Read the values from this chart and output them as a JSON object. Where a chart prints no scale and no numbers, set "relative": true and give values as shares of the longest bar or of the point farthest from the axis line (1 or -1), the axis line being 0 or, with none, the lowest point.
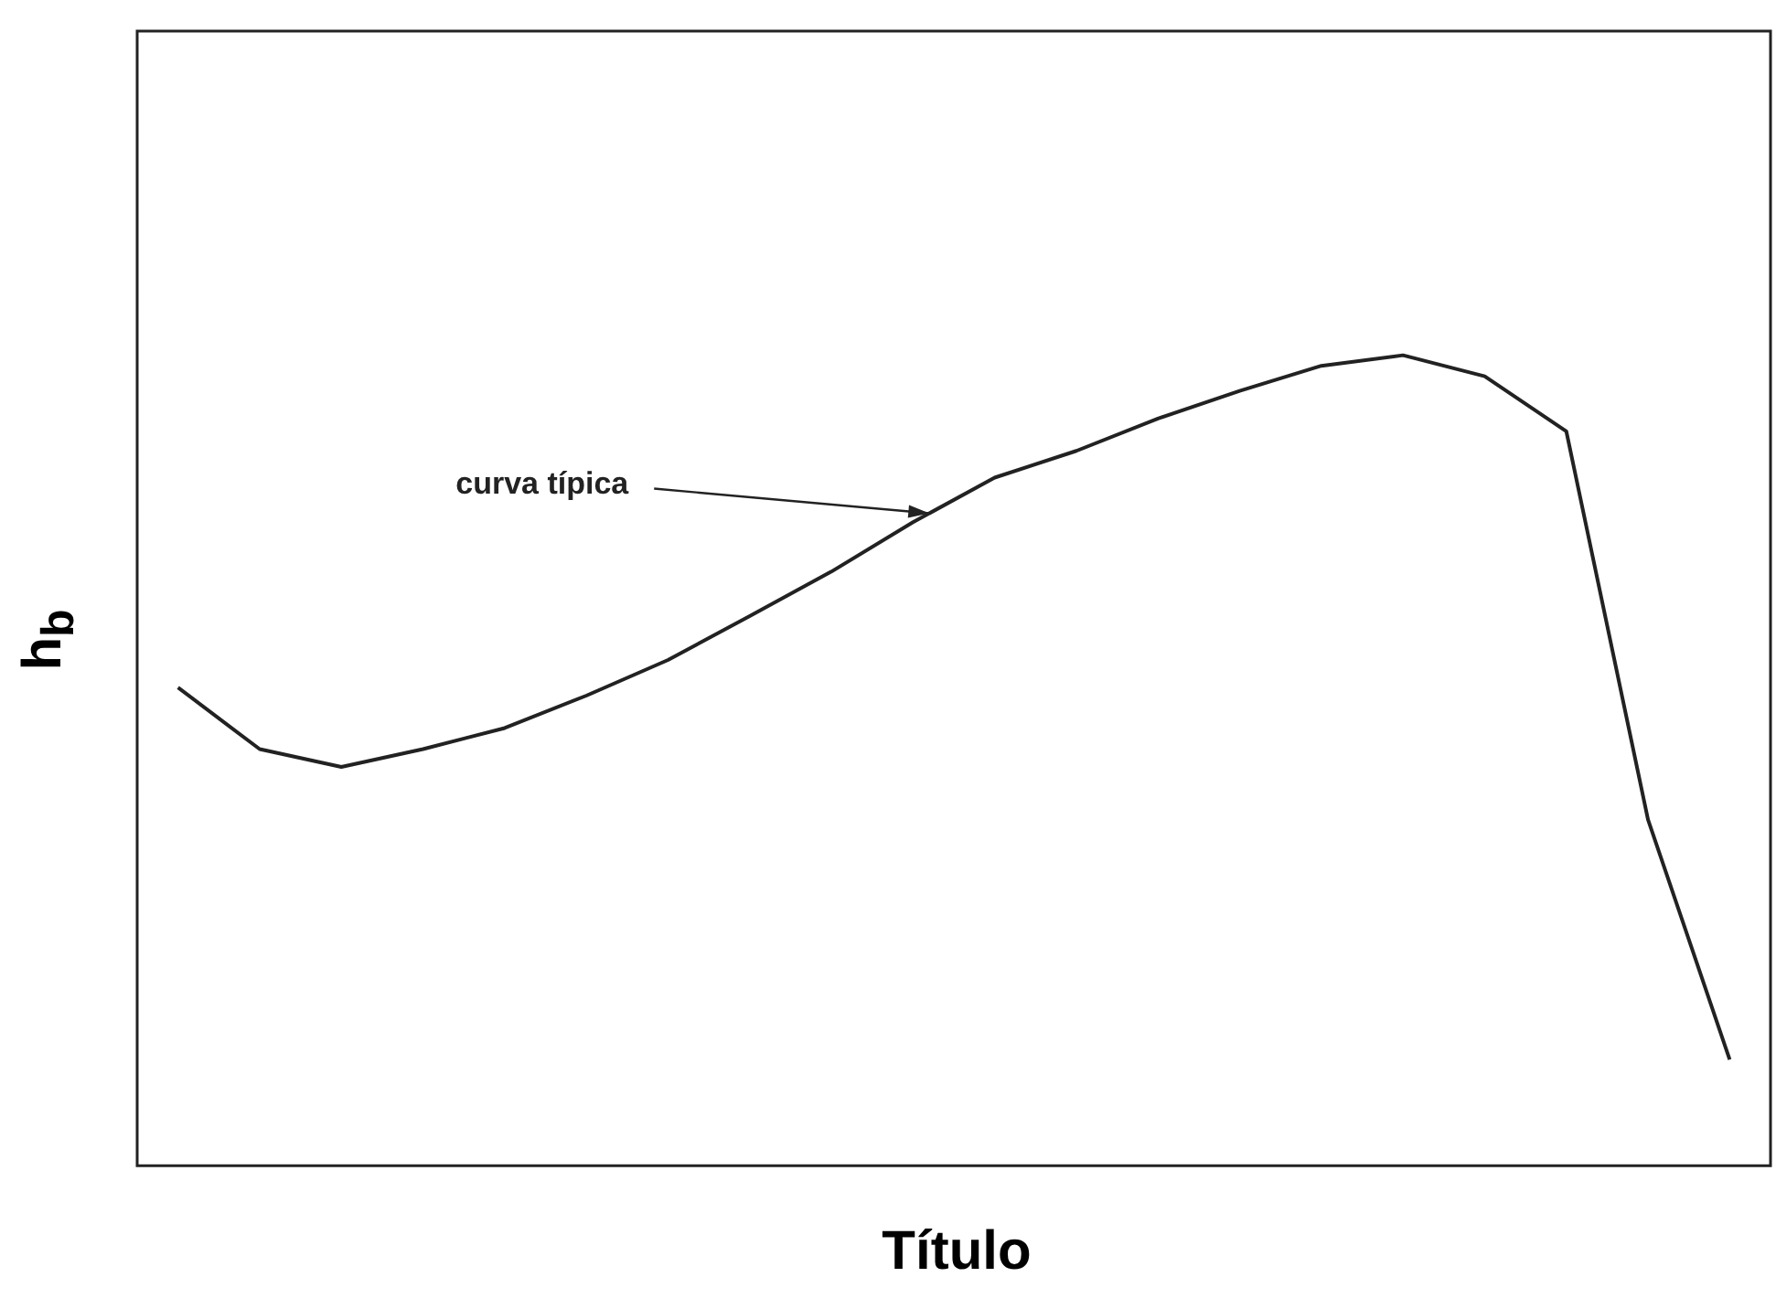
{
  "chart_data": {
    "type": "line",
    "relative": true,
    "xlabel": "Título",
    "ylabel": "h$_{b}$",
    "categories": [
      null,
      null,
      null,
      null,
      null,
      null,
      null,
      null,
      null,
      null,
      null,
      null,
      null,
      null,
      null,
      null,
      null,
      null,
      null,
      null
    ],
    "series": [
      {
        "color": "#222222",
        "values": [
          0.59,
          0.514,
          0.492,
          0.514,
          0.54,
          0.58,
          0.624,
          0.678,
          0.733,
          0.794,
          0.849,
          0.882,
          0.922,
          0.956,
          0.987,
          1,
          0.974,
          0.906,
          0.427,
          0.131
        ]
      }
    ],
    "annotations": [
      "curva típica"
    ],
    "legend": false,
    "marker": "none",
    "grid": false
  }
}
